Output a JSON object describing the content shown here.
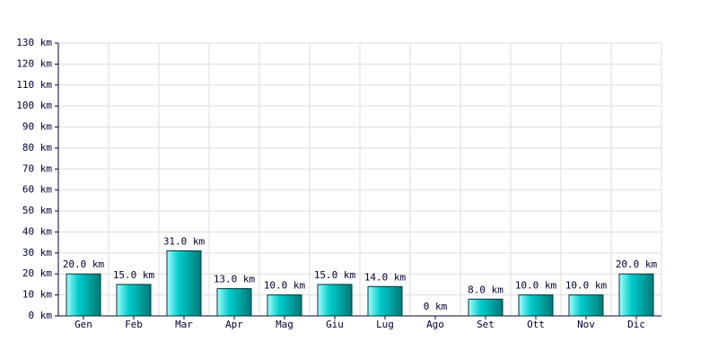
{
  "chart_data": {
    "type": "bar",
    "categories": [
      "Gen",
      "Feb",
      "Mar",
      "Apr",
      "Mag",
      "Giu",
      "Lug",
      "Ago",
      "Set",
      "Ott",
      "Nov",
      "Dic"
    ],
    "values": [
      20,
      15,
      31,
      13,
      10,
      15,
      14,
      0,
      8,
      10,
      10,
      20
    ],
    "value_labels": [
      "20.0 km",
      "15.0 km",
      "31.0 km",
      "13.0 km",
      "10.0 km",
      "15.0 km",
      "14.0 km",
      "0 km",
      "8.0 km",
      "10.0 km",
      "10.0 km",
      "20.0 km"
    ],
    "color": "#00cccc",
    "ylim": [
      0,
      130
    ],
    "yticks": [
      {
        "value": 0,
        "label": "0 km"
      },
      {
        "value": 10,
        "label": "10 km"
      },
      {
        "value": 20,
        "label": "20 km"
      },
      {
        "value": 30,
        "label": "30 km"
      },
      {
        "value": 40,
        "label": "40 km"
      },
      {
        "value": 50,
        "label": "50 km"
      },
      {
        "value": 60,
        "label": "60 km"
      },
      {
        "value": 70,
        "label": "70 km"
      },
      {
        "value": 80,
        "label": "80 km"
      },
      {
        "value": 90,
        "label": "90 km"
      },
      {
        "value": 100,
        "label": "100 km"
      },
      {
        "value": 110,
        "label": "110 km"
      },
      {
        "value": 120,
        "label": "120 km"
      },
      {
        "value": 130,
        "label": "130 km"
      }
    ],
    "grid": true
  }
}
